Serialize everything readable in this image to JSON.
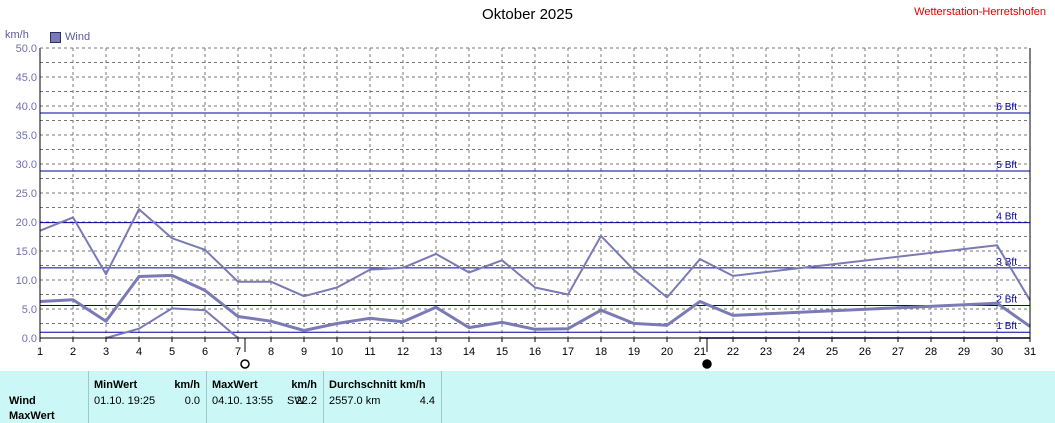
{
  "page": {
    "title": "Oktober 2025",
    "station": "Wetterstation-Herretshofen",
    "y_unit": "km/h",
    "legend_label": "Wind"
  },
  "chart_data": {
    "type": "line",
    "title": "Oktober 2025",
    "ylabel": "km/h",
    "xlabel": "",
    "ylim": [
      0,
      50
    ],
    "xlim": [
      1,
      31
    ],
    "yticks": [
      "0.0",
      "5.0",
      "10.0",
      "15.0",
      "20.0",
      "25.0",
      "30.0",
      "35.0",
      "40.0",
      "45.0",
      "50.0"
    ],
    "x": [
      1,
      2,
      3,
      4,
      5,
      6,
      7,
      8,
      9,
      10,
      11,
      12,
      13,
      14,
      15,
      16,
      17,
      18,
      19,
      20,
      21,
      22,
      23,
      24,
      25,
      26,
      27,
      28,
      29,
      30,
      31
    ],
    "grid": true,
    "legend": "top-left",
    "colors": {
      "series": "#7a7ab6",
      "bft": "#0000a0",
      "grid": "#777777"
    },
    "series": [
      {
        "name": "MaxWert",
        "x": [
          1,
          2,
          3,
          4,
          5,
          6,
          7,
          8,
          9,
          10,
          11,
          12,
          13,
          14,
          15,
          16,
          17,
          18,
          19,
          20,
          21,
          22,
          30,
          31
        ],
        "values": [
          18.5,
          20.8,
          11.0,
          22.2,
          17.2,
          15.2,
          9.7,
          9.7,
          7.2,
          8.7,
          11.8,
          12.1,
          14.5,
          11.3,
          13.4,
          8.7,
          7.5,
          17.6,
          11.7,
          7.0,
          13.6,
          10.7,
          16.0,
          6.5
        ]
      },
      {
        "name": "Wind",
        "x": [
          1,
          2,
          3,
          4,
          5,
          6,
          7,
          8,
          9,
          10,
          11,
          12,
          13,
          14,
          15,
          16,
          17,
          18,
          19,
          20,
          21,
          22,
          30,
          31
        ],
        "values": [
          6.3,
          6.6,
          2.9,
          10.6,
          10.8,
          8.2,
          3.7,
          2.9,
          1.3,
          2.5,
          3.4,
          2.8,
          5.3,
          1.8,
          2.7,
          1.5,
          1.6,
          4.8,
          2.5,
          2.2,
          6.3,
          3.9,
          6.0,
          2.0
        ]
      },
      {
        "name": "MinWert",
        "x": [
          3,
          4,
          5,
          6,
          7
        ],
        "values": [
          0.0,
          1.6,
          5.1,
          4.8,
          0.0
        ]
      },
      {
        "name": "MinWert-end",
        "x": [
          21,
          31
        ],
        "values": [
          0.0,
          0.0
        ]
      }
    ],
    "bft_lines": [
      {
        "label": "1 Bft",
        "value": 1.0
      },
      {
        "label": "2 Bft",
        "value": 5.6
      },
      {
        "label": "3 Bft",
        "value": 12.1
      },
      {
        "label": "4 Bft",
        "value": 19.9
      },
      {
        "label": "5 Bft",
        "value": 28.8
      },
      {
        "label": "6 Bft",
        "value": 38.8
      }
    ],
    "moon_phases": [
      {
        "day": 7,
        "phase": "full"
      },
      {
        "day": 21,
        "phase": "new"
      }
    ]
  },
  "stats": {
    "row_labels": [
      "Wind",
      "MaxWert"
    ],
    "min_header": "MinWert",
    "min_unit": "km/h",
    "min_datetime": "01.10.  19:25",
    "min_value": "0.0",
    "max_header": "MaxWert",
    "max_unit": "km/h",
    "max_datetime": "04.10.  13:55",
    "max_dir": "SW",
    "max_value": "22.2",
    "avg_header": "Durchschnitt km/h",
    "avg_distance": "2557.0 km",
    "avg_value": "4.4"
  }
}
